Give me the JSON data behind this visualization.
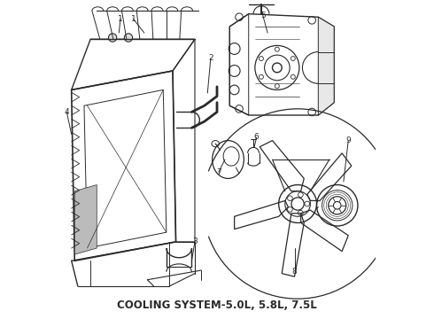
{
  "title": "COOLING SYSTEM-5.0L, 5.8L, 7.5L",
  "title_fontsize": 8.5,
  "title_fontweight": "bold",
  "bg_color": "#f0f0f0",
  "line_color": "#2a2a2a",
  "label_color": "#1a1a1a",
  "figsize": [
    4.9,
    3.6
  ],
  "dpi": 100
}
